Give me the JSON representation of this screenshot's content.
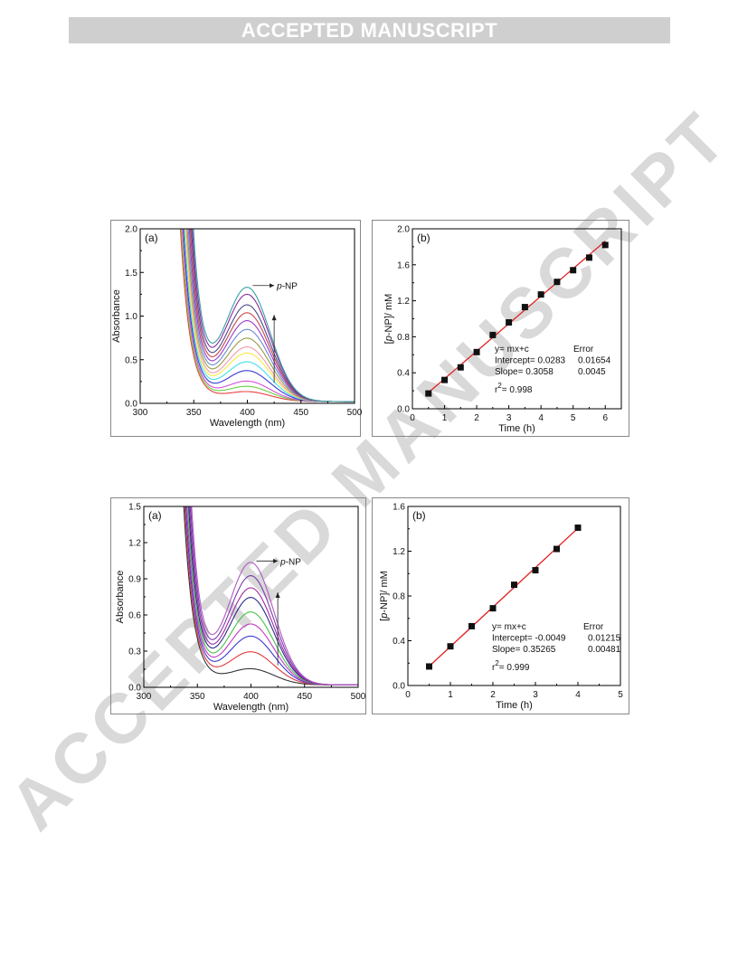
{
  "header": {
    "banner": "ACCEPTED MANUSCRIPT"
  },
  "watermark": {
    "text": "ACCEPTED MANUSCRIPT"
  },
  "chart_data": [
    {
      "type": "line",
      "panel_label": "(a)",
      "xlabel": "Wavelength (nm)",
      "ylabel": "Absorbance",
      "xlim": [
        300,
        500
      ],
      "ylim": [
        0,
        2.0
      ],
      "xticks": [
        300,
        350,
        400,
        450,
        500
      ],
      "yticks": [
        0.0,
        0.5,
        1.0,
        1.5,
        2.0
      ],
      "ytick_labels": [
        "0.0",
        "0.5",
        "1.0",
        "1.5",
        "2.0"
      ],
      "annotation": "p-NP",
      "x_start": 335,
      "series": [
        {
          "peak": 0.11,
          "color": "#e8403c"
        },
        {
          "peak": 0.17,
          "color": "#66d13f"
        },
        {
          "peak": 0.23,
          "color": "#d94fd9"
        },
        {
          "peak": 0.35,
          "color": "#3a3ad4"
        },
        {
          "peak": 0.45,
          "color": "#3ee0e6"
        },
        {
          "peak": 0.55,
          "color": "#f4e94a"
        },
        {
          "peak": 0.62,
          "color": "#f09aa8"
        },
        {
          "peak": 0.72,
          "color": "#9b9b4a"
        },
        {
          "peak": 0.82,
          "color": "#6b8dd6"
        },
        {
          "peak": 0.92,
          "color": "#9a3cc7"
        },
        {
          "peak": 1.01,
          "color": "#c44a4a"
        },
        {
          "peak": 1.1,
          "color": "#4b4b8f"
        },
        {
          "peak": 1.22,
          "color": "#8a2aa0"
        },
        {
          "peak": 1.3,
          "color": "#3aa0a0"
        }
      ]
    },
    {
      "type": "scatter",
      "panel_label": "(b)",
      "xlabel": "Time (h)",
      "ylabel": "[p-NP]/ mM",
      "xlim": [
        0,
        6.5
      ],
      "ylim": [
        0,
        2.0
      ],
      "xticks": [
        0,
        1,
        2,
        3,
        4,
        5,
        6
      ],
      "yticks": [
        0.0,
        0.4,
        0.8,
        1.2,
        1.6,
        2.0
      ],
      "ytick_labels": [
        "0.0",
        "0.4",
        "0.8",
        "1.2",
        "1.6",
        "2.0"
      ],
      "x": [
        0.5,
        1.0,
        1.5,
        2.0,
        2.5,
        3.0,
        3.5,
        4.0,
        4.5,
        5.0,
        5.5,
        6.0
      ],
      "y": [
        0.17,
        0.32,
        0.46,
        0.63,
        0.82,
        0.96,
        1.13,
        1.27,
        1.41,
        1.54,
        1.68,
        1.82
      ],
      "fit": {
        "intercept": 0.0283,
        "slope": 0.3058
      },
      "stats": {
        "equation": "y= mx+c",
        "error_header": "Error",
        "intercept_label": "Intercept= 0.0283",
        "intercept_error": "0.01654",
        "slope_label": "Slope= 0.3058",
        "slope_error": "0.0045",
        "r2_prefix": "r",
        "r2_sup": "2",
        "r2_value": "= 0.998"
      }
    },
    {
      "type": "line",
      "panel_label": "(a)",
      "xlabel": "Wavelength (nm)",
      "ylabel": "Absorbance",
      "xlim": [
        300,
        500
      ],
      "ylim": [
        0,
        1.5
      ],
      "xticks": [
        300,
        350,
        400,
        450,
        500
      ],
      "yticks": [
        0.0,
        0.3,
        0.6,
        0.9,
        1.2,
        1.5
      ],
      "ytick_labels": [
        "0.0",
        "0.3",
        "0.6",
        "0.9",
        "1.2",
        "1.5"
      ],
      "annotation": "p-NP",
      "x_start": 332,
      "series": [
        {
          "peak": 0.13,
          "color": "#333333"
        },
        {
          "peak": 0.27,
          "color": "#e03a3a"
        },
        {
          "peak": 0.4,
          "color": "#3a3ad4"
        },
        {
          "peak": 0.5,
          "color": "#c23ac2"
        },
        {
          "peak": 0.6,
          "color": "#4bbf4b"
        },
        {
          "peak": 0.72,
          "color": "#2a2a8a"
        },
        {
          "peak": 0.8,
          "color": "#a02aa0"
        },
        {
          "peak": 0.9,
          "color": "#7a3ab0"
        },
        {
          "peak": 1.01,
          "color": "#b05ac0"
        }
      ]
    },
    {
      "type": "scatter",
      "panel_label": "(b)",
      "xlabel": "Time (h)",
      "ylabel": "[p-NP]/ mM",
      "xlim": [
        0,
        5
      ],
      "ylim": [
        0,
        1.6
      ],
      "xticks": [
        0,
        1,
        2,
        3,
        4,
        5
      ],
      "yticks": [
        0.0,
        0.4,
        0.8,
        1.2,
        1.6
      ],
      "ytick_labels": [
        "0.0",
        "0.4",
        "0.8",
        "1.2",
        "1.6"
      ],
      "x": [
        0.5,
        1.0,
        1.5,
        2.0,
        2.5,
        3.0,
        3.5,
        4.0
      ],
      "y": [
        0.17,
        0.35,
        0.53,
        0.69,
        0.9,
        1.03,
        1.22,
        1.41
      ],
      "fit": {
        "intercept": -0.0049,
        "slope": 0.35265
      },
      "stats": {
        "equation": "y= mx+c",
        "error_header": "Error",
        "intercept_label": "Intercept= -0.0049",
        "intercept_error": "0.01215",
        "slope_label": "Slope= 0.35265",
        "slope_error": "0.00481",
        "r2_prefix": "r",
        "r2_sup": "2",
        "r2_value": "= 0.999"
      }
    }
  ]
}
